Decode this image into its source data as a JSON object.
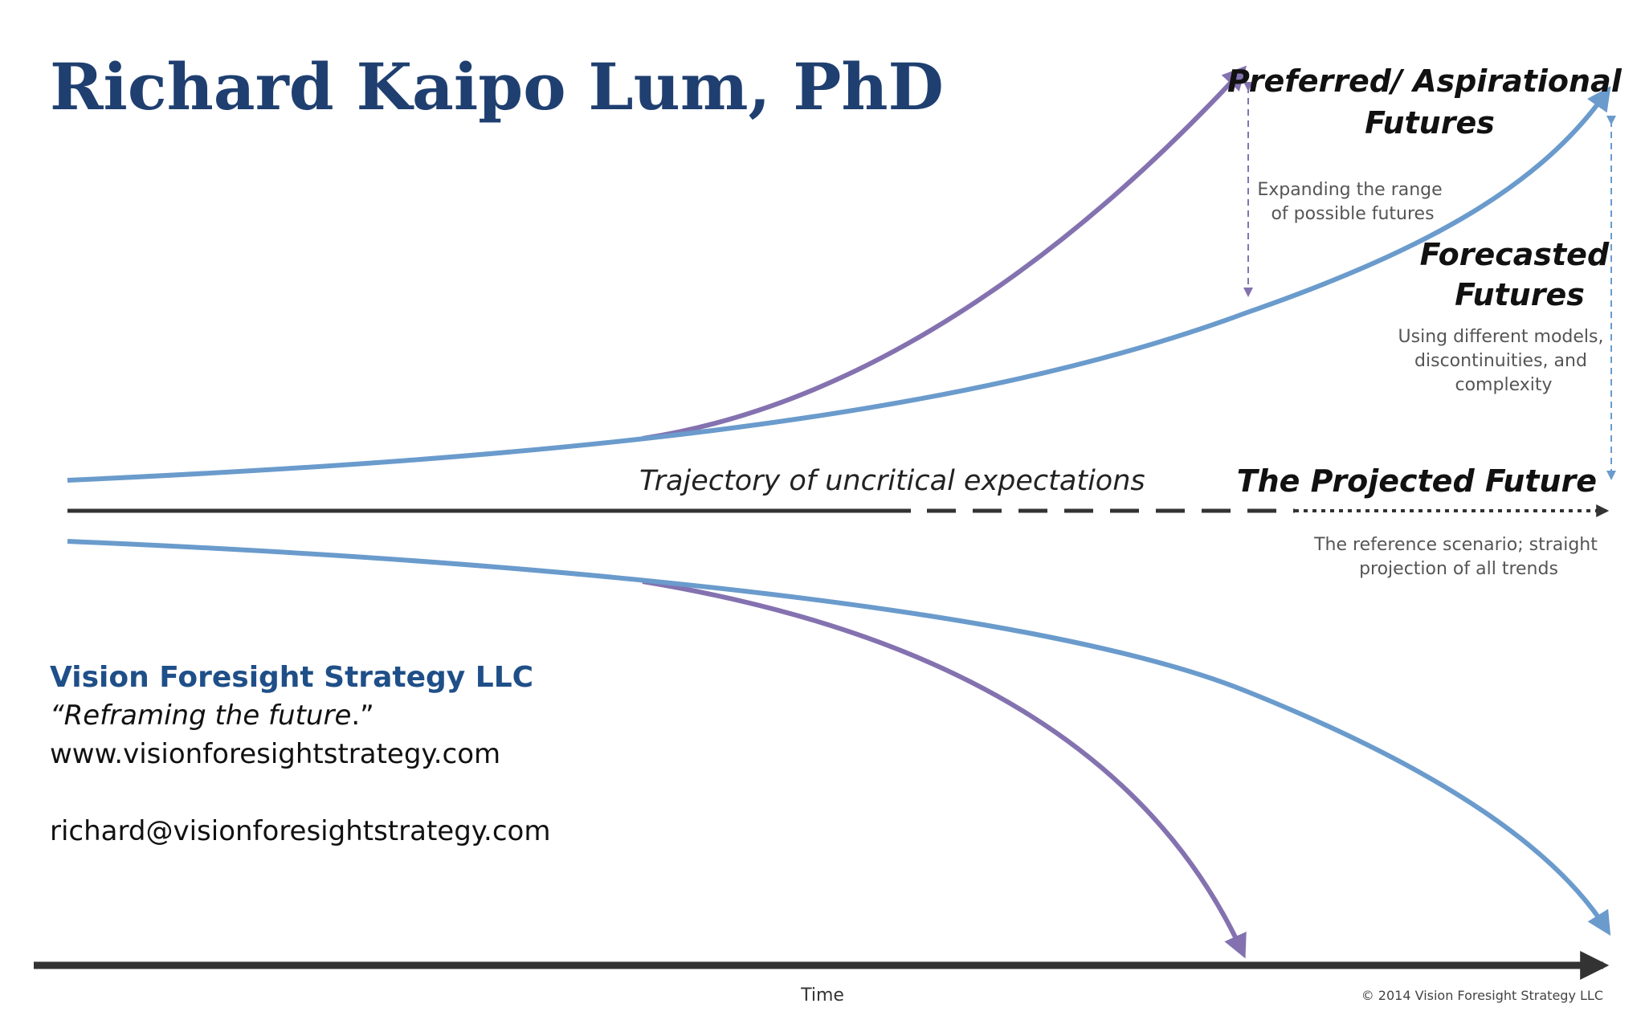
{
  "title": "Richard Kaipo Lum, PhD",
  "labels": {
    "preferred": [
      "Preferred/ Aspirational",
      "Futures"
    ],
    "expanding": [
      "Expanding the range",
      "of possible futures"
    ],
    "forecasted": [
      "Forecasted",
      "Futures"
    ],
    "forecasted_note": [
      "Using different models,",
      "discontinuities, and",
      "complexity"
    ],
    "trajectory": "Trajectory of uncritical expectations",
    "projected": "The Projected Future",
    "projected_note": [
      "The reference scenario; straight",
      "projection of all trends"
    ]
  },
  "axis": {
    "x_label": "Time"
  },
  "copyright": "© 2014 Vision Foresight Strategy LLC",
  "company": {
    "name": "Vision Foresight Strategy LLC",
    "tagline_open": "“",
    "tagline": "Reframing the future",
    "tagline_close": ".”",
    "website": "www.visionforesightstrategy.com",
    "email": "richard@visionforesightstrategy.com"
  },
  "colors": {
    "title": "#1f3f70",
    "company": "#1f4f88",
    "purple_curve": "#8472b0",
    "blue_curve": "#6a9bcc",
    "axis": "#333333"
  }
}
